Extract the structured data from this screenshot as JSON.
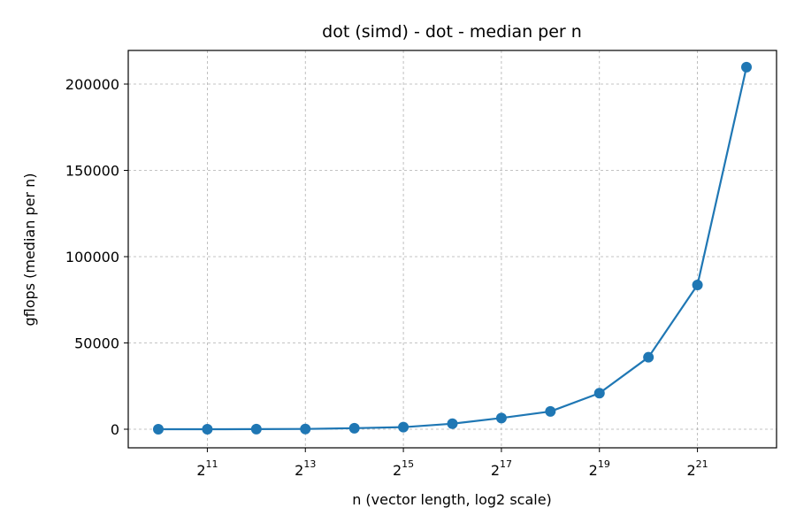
{
  "chart_data": {
    "type": "line",
    "title": "dot (simd) - dot - median per n",
    "xlabel": "n (vector length, log2 scale)",
    "ylabel": "gflops (median per n)",
    "x_scale": "log2",
    "xlim": [
      1024,
      4194304
    ],
    "ylim": [
      0,
      200000
    ],
    "x_ticks": [
      {
        "value": 2048,
        "base": "2",
        "exp": "11"
      },
      {
        "value": 8192,
        "base": "2",
        "exp": "13"
      },
      {
        "value": 32768,
        "base": "2",
        "exp": "15"
      },
      {
        "value": 131072,
        "base": "2",
        "exp": "17"
      },
      {
        "value": 524288,
        "base": "2",
        "exp": "19"
      },
      {
        "value": 2097152,
        "base": "2",
        "exp": "21"
      }
    ],
    "y_ticks": [
      {
        "value": 0,
        "label": "0"
      },
      {
        "value": 50000,
        "label": "50000"
      },
      {
        "value": 100000,
        "label": "100000"
      },
      {
        "value": 150000,
        "label": "150000"
      },
      {
        "value": 200000,
        "label": "200000"
      }
    ],
    "grid": true,
    "series": [
      {
        "color": "#1f77b4",
        "marker": "circle",
        "x": [
          1024,
          2048,
          4096,
          8192,
          16384,
          32768,
          65536,
          131072,
          262144,
          524288,
          1048576,
          2097152,
          4194304
        ],
        "y": [
          0,
          0,
          50,
          150,
          600,
          1200,
          3200,
          6500,
          10300,
          20900,
          41700,
          83600,
          209800
        ]
      }
    ]
  }
}
